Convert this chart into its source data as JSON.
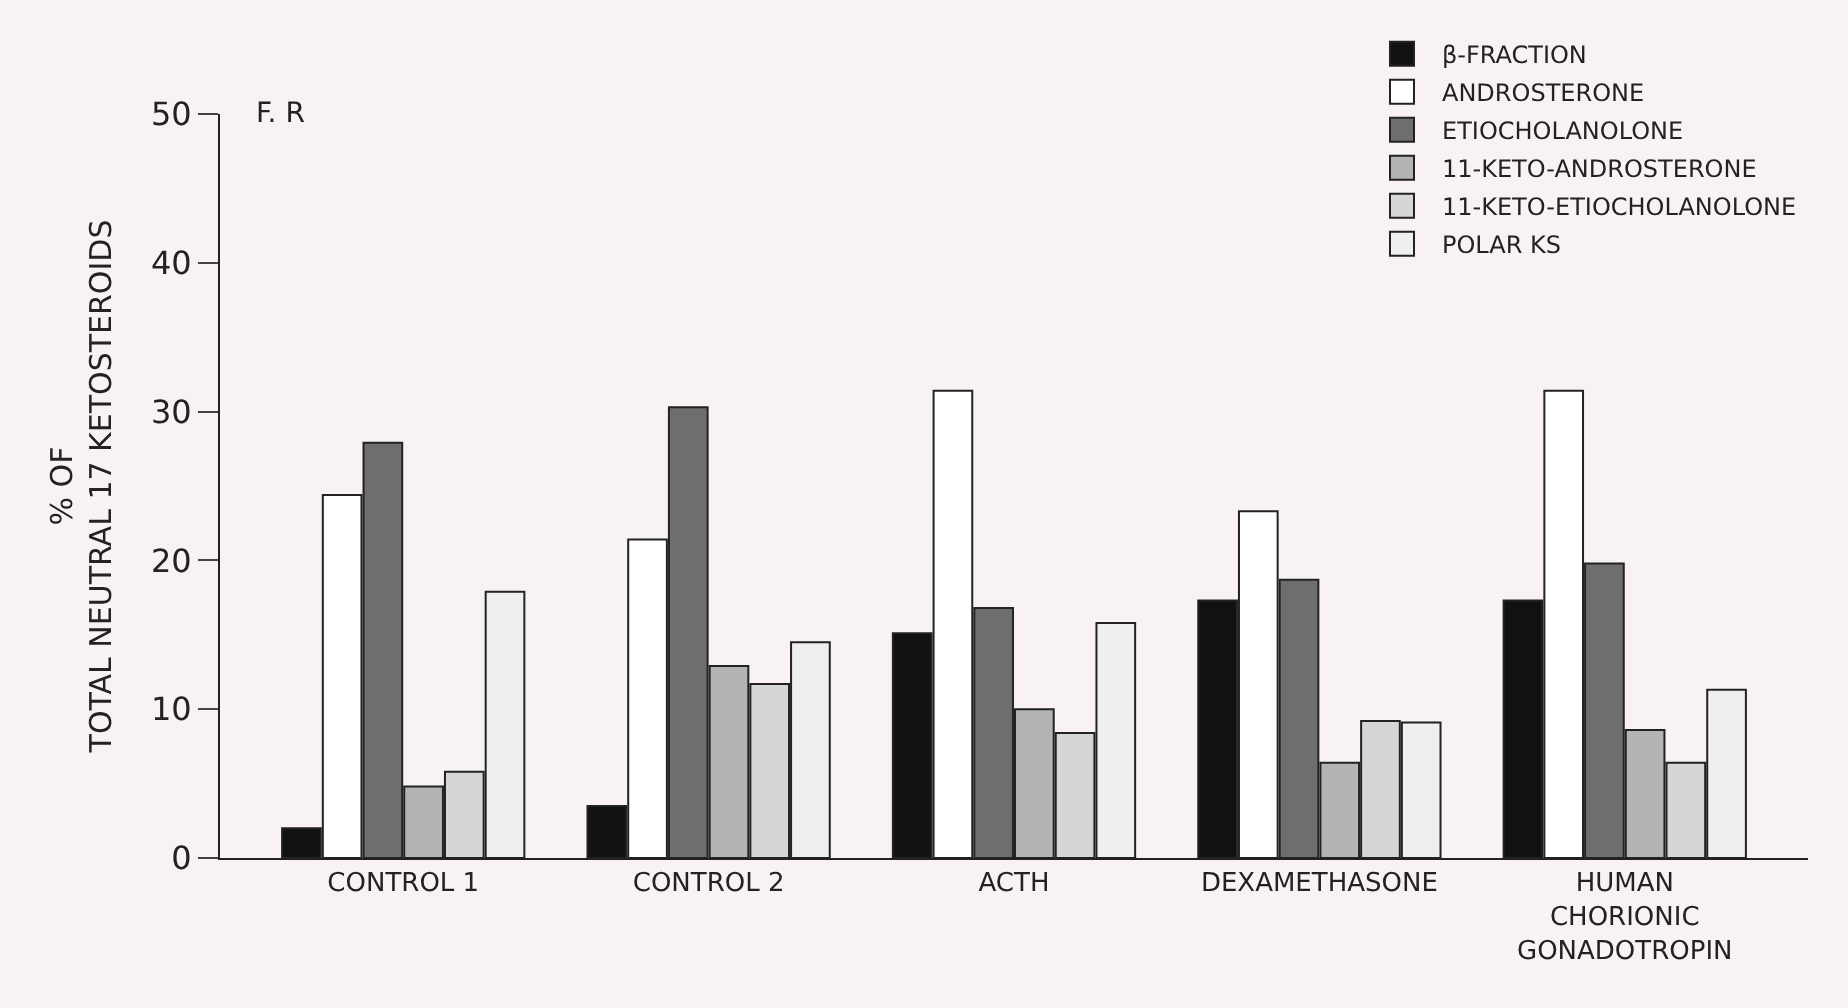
{
  "chart_data": {
    "type": "bar",
    "categories": [
      "CONTROL 1",
      "CONTROL 2",
      "ACTH",
      "DEXAMETHASONE",
      "HUMAN\nCHORIONIC\nGONADOTROPIN"
    ],
    "ylabel": "% OF\nTOTAL NEUTRAL 17 KETOSTEROIDS",
    "annotations": [
      "F. R"
    ],
    "series": [
      {
        "name": "β-FRACTION",
        "color": "#111111",
        "values": [
          2,
          3.5,
          15.1,
          17.3,
          17.3
        ]
      },
      {
        "name": "ANDROSTERONE",
        "color": "#ffffff",
        "values": [
          24.4,
          21.4,
          31.4,
          23.3,
          31.4
        ]
      },
      {
        "name": "ETIOCHOLANOLONE",
        "color": "#6e6e6e",
        "values": [
          27.9,
          30.3,
          16.8,
          18.7,
          19.8
        ]
      },
      {
        "name": "11-KETO-ANDROSTERONE",
        "color": "#b4b4b4",
        "values": [
          4.8,
          12.9,
          10,
          6.4,
          8.6
        ]
      },
      {
        "name": "11-KETO-ETIOCHOLANOLONE",
        "color": "#d6d6d6",
        "values": [
          5.8,
          11.7,
          8.4,
          9.2,
          6.4
        ]
      },
      {
        "name": "POLAR KS",
        "color": "#efefef",
        "values": [
          17.9,
          14.5,
          15.8,
          9.1,
          11.3
        ]
      }
    ],
    "ylim": [
      0,
      50
    ],
    "yticks": [
      0,
      10,
      20,
      30,
      40,
      50
    ],
    "grid": false,
    "legend": "top right"
  }
}
